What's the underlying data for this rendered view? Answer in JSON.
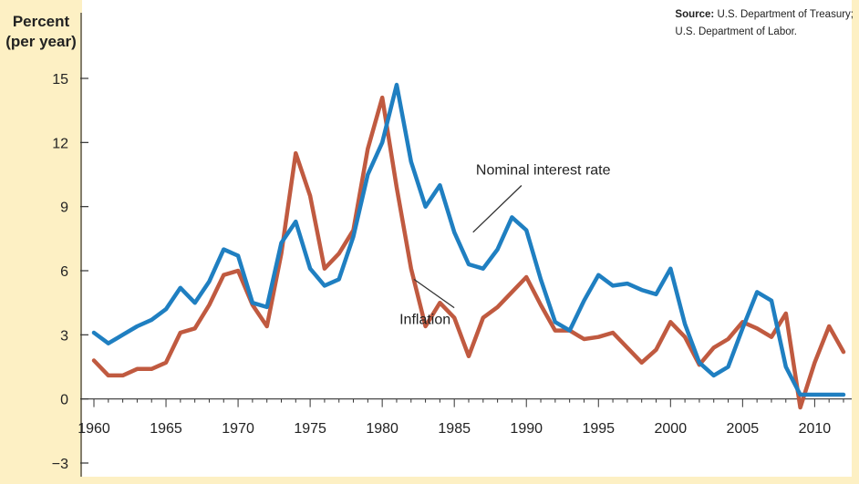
{
  "colors": {
    "background": "#fdf0c4",
    "plot_area": "#ffffff",
    "nominal": "#1f7fc1",
    "inflation": "#c05a40",
    "axis": "#333333"
  },
  "source": {
    "label": "Source:",
    "line1": "U.S. Department of Treasury;",
    "line2": "U.S. Department of Labor."
  },
  "chart_data": {
    "type": "line",
    "ylabel_lines": [
      "Percent",
      "(per year)"
    ],
    "ylim": [
      -3,
      15
    ],
    "yticks": [
      15,
      12,
      9,
      6,
      3,
      0,
      -3
    ],
    "ytick_labels": [
      "15",
      "12",
      "9",
      "6",
      "3",
      "0",
      "−3"
    ],
    "xlim": [
      1960,
      2012
    ],
    "xticks": [
      1960,
      1965,
      1970,
      1975,
      1980,
      1985,
      1990,
      1995,
      2000,
      2005,
      2010
    ],
    "xtick_labels": [
      "1960",
      "1965",
      "1970",
      "1975",
      "1980",
      "1985",
      "1990",
      "1995",
      "2000",
      "2005",
      "2010"
    ],
    "grid": false,
    "series": [
      {
        "name": "Nominal interest rate",
        "x": [
          1960,
          1961,
          1962,
          1963,
          1964,
          1965,
          1966,
          1967,
          1968,
          1969,
          1970,
          1971,
          1972,
          1973,
          1974,
          1975,
          1976,
          1977,
          1978,
          1979,
          1980,
          1981,
          1982,
          1983,
          1984,
          1985,
          1986,
          1987,
          1988,
          1989,
          1990,
          1991,
          1992,
          1993,
          1994,
          1995,
          1996,
          1997,
          1998,
          1999,
          2000,
          2001,
          2002,
          2003,
          2004,
          2005,
          2006,
          2007,
          2008,
          2009,
          2010,
          2011,
          2012
        ],
        "values": [
          3.1,
          2.6,
          3.0,
          3.4,
          3.7,
          4.2,
          5.2,
          4.5,
          5.5,
          7.0,
          6.7,
          4.5,
          4.3,
          7.3,
          8.3,
          6.1,
          5.3,
          5.6,
          7.6,
          10.5,
          12.0,
          14.7,
          11.1,
          9.0,
          10.0,
          7.8,
          6.3,
          6.1,
          7.0,
          8.5,
          7.9,
          5.6,
          3.6,
          3.2,
          4.6,
          5.8,
          5.3,
          5.4,
          5.1,
          4.9,
          6.1,
          3.5,
          1.7,
          1.1,
          1.5,
          3.3,
          5.0,
          4.6,
          1.5,
          0.2,
          0.2,
          0.2,
          0.2
        ]
      },
      {
        "name": "Inflation",
        "x": [
          1960,
          1961,
          1962,
          1963,
          1964,
          1965,
          1966,
          1967,
          1968,
          1969,
          1970,
          1971,
          1972,
          1973,
          1974,
          1975,
          1976,
          1977,
          1978,
          1979,
          1980,
          1981,
          1982,
          1983,
          1984,
          1985,
          1986,
          1987,
          1988,
          1989,
          1990,
          1991,
          1992,
          1993,
          1994,
          1995,
          1996,
          1997,
          1998,
          1999,
          2000,
          2001,
          2002,
          2003,
          2004,
          2005,
          2006,
          2007,
          2008,
          2009,
          2010,
          2011,
          2012
        ],
        "values": [
          1.8,
          1.1,
          1.1,
          1.4,
          1.4,
          1.7,
          3.1,
          3.3,
          4.4,
          5.8,
          6.0,
          4.4,
          3.4,
          6.8,
          11.5,
          9.5,
          6.1,
          6.8,
          7.9,
          11.7,
          14.1,
          9.9,
          6.1,
          3.4,
          4.5,
          3.8,
          2.0,
          3.8,
          4.3,
          5.0,
          5.7,
          4.4,
          3.2,
          3.2,
          2.8,
          2.9,
          3.1,
          2.4,
          1.7,
          2.3,
          3.6,
          2.9,
          1.6,
          2.4,
          2.8,
          3.6,
          3.3,
          2.9,
          4.0,
          -0.4,
          1.7,
          3.4,
          2.2
        ]
      }
    ],
    "annotations": [
      {
        "text": "Nominal interest rate",
        "series": 0,
        "text_x": 1986.5,
        "text_y": 10.5,
        "point_x": 1986.3,
        "point_y": 7.8
      },
      {
        "text": "Inflation",
        "series": 1,
        "text_x": 1981.2,
        "text_y": 3.5,
        "point_x": 1982.2,
        "point_y": 5.6
      }
    ]
  }
}
